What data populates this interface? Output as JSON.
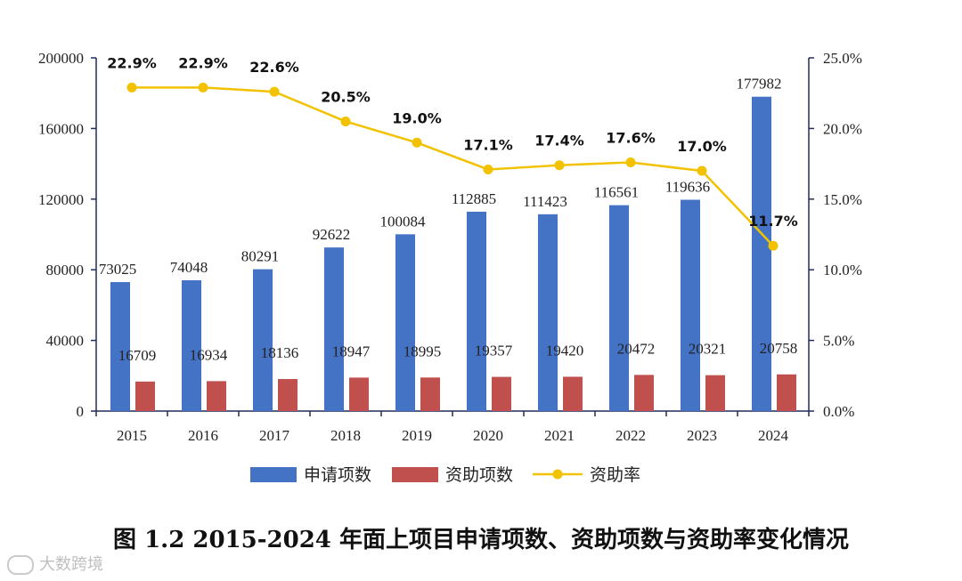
{
  "chart_data": {
    "type": "bar+line",
    "categories": [
      "2015",
      "2016",
      "2017",
      "2018",
      "2019",
      "2020",
      "2021",
      "2022",
      "2023",
      "2024"
    ],
    "series": [
      {
        "name": "申请项数",
        "type": "bar",
        "axis": "left",
        "color": "#4472C4",
        "values": [
          73025,
          74048,
          80291,
          92622,
          100084,
          112885,
          111423,
          116561,
          119636,
          177982
        ]
      },
      {
        "name": "资助项数",
        "type": "bar",
        "axis": "left",
        "color": "#C0504D",
        "values": [
          16709,
          16934,
          18136,
          18947,
          18995,
          19357,
          19420,
          20472,
          20321,
          20758
        ]
      },
      {
        "name": "资助率",
        "type": "line",
        "axis": "right",
        "color": "#F2C200",
        "values": [
          22.9,
          22.9,
          22.6,
          20.5,
          19.0,
          17.1,
          17.4,
          17.6,
          17.0,
          11.7
        ],
        "labels": [
          "22.9%",
          "22.9%",
          "22.6%",
          "20.5%",
          "19.0%",
          "17.1%",
          "17.4%",
          "17.6%",
          "17.0%",
          "11.7%"
        ]
      }
    ],
    "y_left": {
      "min": 0,
      "max": 200000,
      "ticks": [
        "0",
        "40000",
        "80000",
        "120000",
        "160000",
        "200000"
      ]
    },
    "y_right": {
      "min": 0,
      "max": 25,
      "ticks": [
        "0.0%",
        "5.0%",
        "10.0%",
        "15.0%",
        "20.0%",
        "25.0%"
      ]
    },
    "legend_position": "bottom",
    "grid": false
  },
  "caption": "图 1.2  2015-2024 年面上项目申请项数、资助项数与资助率变化情况",
  "watermark": "大数跨境"
}
